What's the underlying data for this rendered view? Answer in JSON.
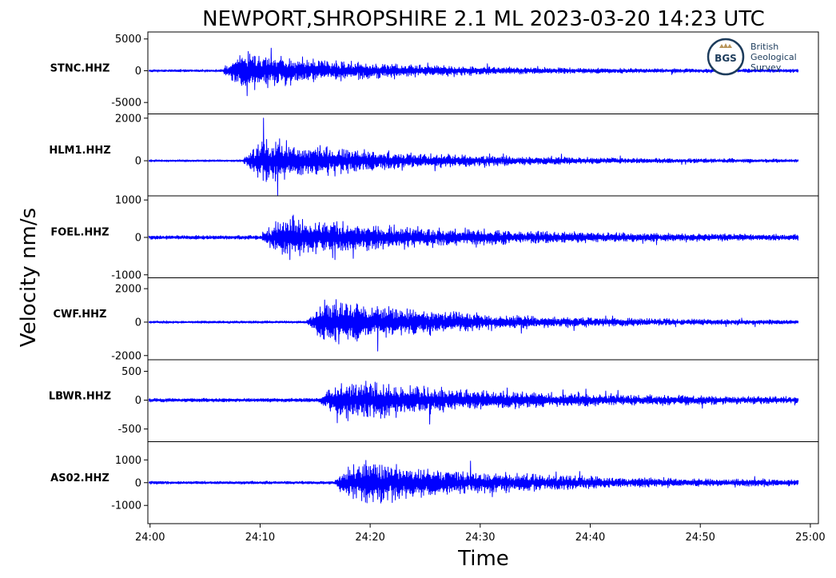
{
  "figure": {
    "title": "NEWPORT,SHROPSHIRE 2.1 ML   2023-03-20 14:23 UTC",
    "ylabel": "Velocity nm/s",
    "xlabel": "Time"
  },
  "logo": {
    "initials": "BGS",
    "line1": "British",
    "line2": "Geological",
    "line3": "Survey"
  },
  "chart_data": {
    "type": "line",
    "trace_color": "#0000ff",
    "x_tick_labels": [
      "24:00",
      "24:10",
      "24:20",
      "24:30",
      "24:40",
      "24:50",
      "25:00"
    ],
    "x_tick_seconds": [
      0,
      600,
      1200,
      1800,
      2400,
      3000,
      3600
    ],
    "x_range_seconds": [
      -12,
      3644
    ],
    "trace_time_seconds": [
      -6,
      3534
    ],
    "series": [
      {
        "name": "STNC.HHZ",
        "ylim": [
          -6800,
          6100
        ],
        "ticks": [
          5000,
          0,
          -5000
        ],
        "tick_labels": [
          "5000",
          "0",
          "-5000"
        ],
        "onset_s": 395,
        "peak_abs": 6000,
        "noise": 150,
        "decay_s": 650
      },
      {
        "name": "HLM1.HHZ",
        "ylim": [
          -1650,
          2200
        ],
        "ticks": [
          2000,
          0
        ],
        "tick_labels": [
          "2000",
          "0"
        ],
        "onset_s": 505,
        "peak_abs": 2000,
        "noise": 40,
        "decay_s": 700
      },
      {
        "name": "FOEL.HHZ",
        "ylim": [
          -1080,
          1110
        ],
        "ticks": [
          1000,
          0,
          -1000
        ],
        "tick_labels": [
          "1000",
          "0",
          "-1000"
        ],
        "onset_s": 610,
        "peak_abs": 1050,
        "noise": 40,
        "decay_s": 800
      },
      {
        "name": "CWF.HHZ",
        "ylim": [
          -2250,
          2650
        ],
        "ticks": [
          2000,
          0,
          -2000
        ],
        "tick_labels": [
          "2000",
          "0",
          "-2000"
        ],
        "onset_s": 855,
        "peak_abs": 2600,
        "noise": 60,
        "decay_s": 700
      },
      {
        "name": "LBWR.HHZ",
        "ylim": [
          -720,
          700
        ],
        "ticks": [
          500,
          0,
          -500
        ],
        "tick_labels": [
          "500",
          "0",
          "-500"
        ],
        "onset_s": 920,
        "peak_abs": 600,
        "noise": 25,
        "decay_s": 900
      },
      {
        "name": "AS02.HHZ",
        "ylim": [
          -1800,
          1800
        ],
        "ticks": [
          1000,
          0,
          -1000
        ],
        "tick_labels": [
          "1000",
          "0",
          "-1000"
        ],
        "onset_s": 1005,
        "peak_abs": 1750,
        "noise": 50,
        "decay_s": 850
      }
    ]
  }
}
